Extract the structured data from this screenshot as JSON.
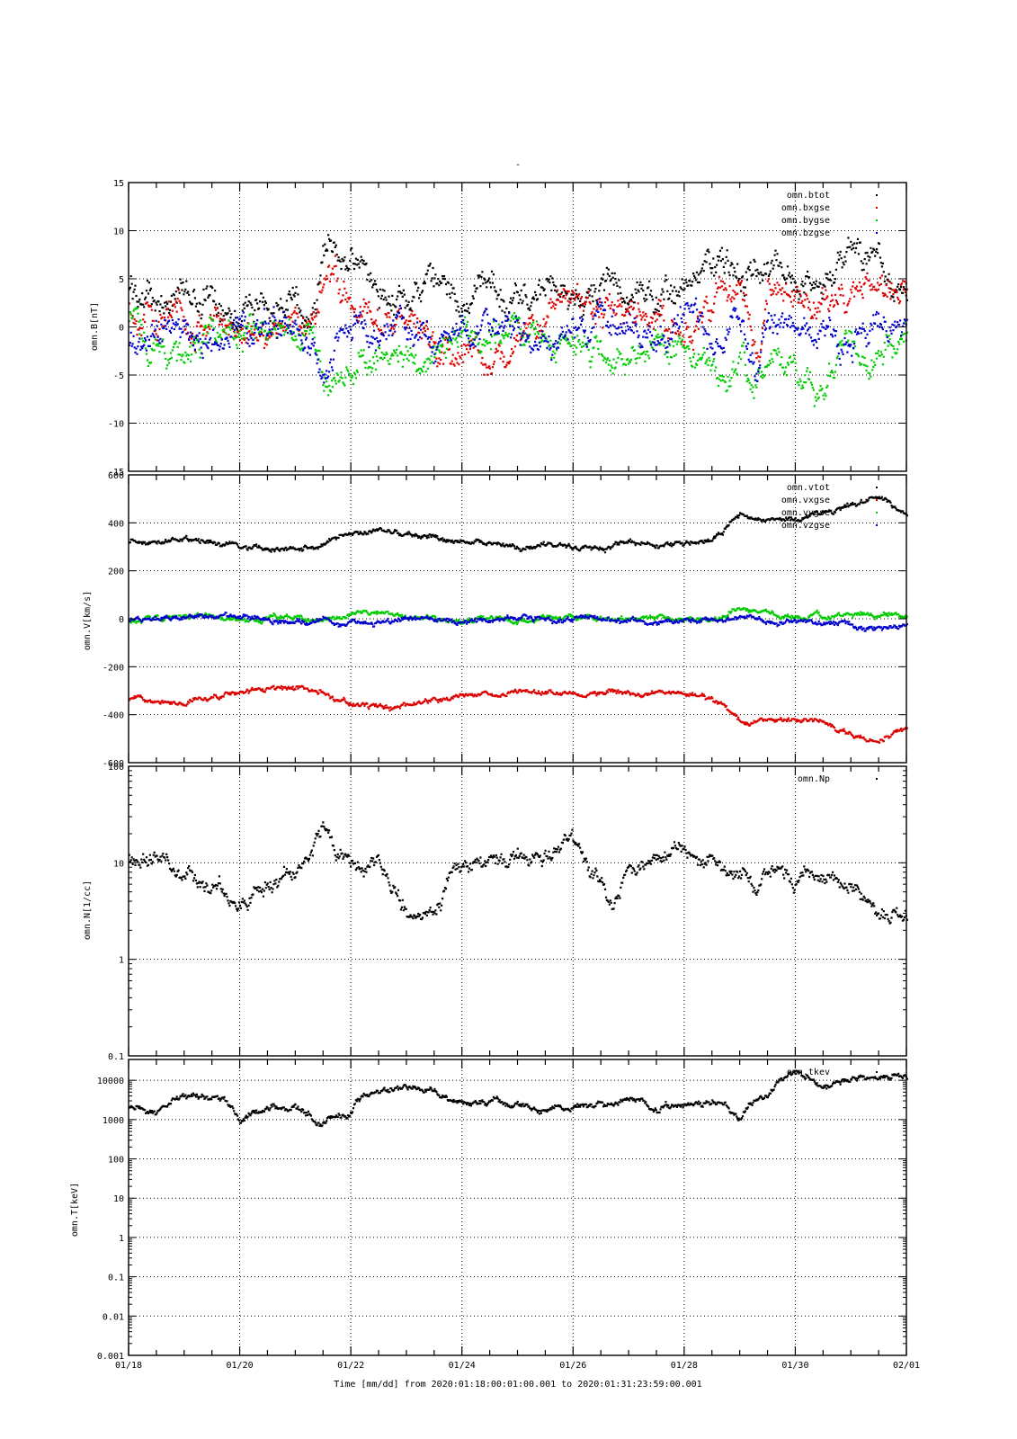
{
  "page": {
    "top_title": "-"
  },
  "x_axis": {
    "tick_labels": [
      "01/18",
      "01/20",
      "01/22",
      "01/24",
      "01/26",
      "01/28",
      "01/30",
      "02/01"
    ],
    "title": "Time [mm/dd]  from 2020:01:18:00:01:00.001  to  2020:01:31:23:59:00.001",
    "range_days": [
      0,
      14
    ]
  },
  "colors": {
    "black": "#000000",
    "red": "#dd0000",
    "green": "#00cc00",
    "blue": "#0000cc"
  },
  "chart_data": [
    {
      "type": "scatter",
      "ylabel": "omn.B[nT]",
      "ylim": [
        -15,
        15
      ],
      "yscale": "linear",
      "y_tick_labels": [
        "15",
        "10",
        "5",
        "0",
        "-5",
        "-10",
        "-15"
      ],
      "grid": true,
      "legend_placement": "top-right",
      "x_units": "days since 01/18",
      "series": [
        {
          "name": "omn.btot",
          "color": "#000000",
          "x": [
            0,
            0.5,
            1,
            1.5,
            2,
            2.5,
            3,
            3.3,
            3.5,
            3.7,
            4,
            4.5,
            5,
            5.5,
            6,
            6.5,
            7,
            7.5,
            8,
            8.5,
            9,
            9.5,
            10,
            10.5,
            11,
            11.3,
            11.5,
            12,
            12.5,
            13,
            13.5,
            14
          ],
          "y": [
            4,
            3,
            3.5,
            3,
            2.5,
            2.5,
            2,
            2,
            8.5,
            8,
            7,
            4,
            3.5,
            3.5,
            3,
            4,
            3,
            4,
            3,
            3.5,
            3.5,
            3,
            3,
            7,
            6.5,
            7,
            6,
            5.5,
            6,
            7,
            5.5,
            4.5
          ]
        },
        {
          "name": "omn.bxgse",
          "color": "#dd0000",
          "x": [
            0,
            0.5,
            1,
            1.5,
            2,
            2.5,
            3,
            3.3,
            3.5,
            3.7,
            4,
            4.5,
            5,
            5.5,
            6,
            6.5,
            7,
            7.5,
            8,
            8.5,
            9,
            9.5,
            10,
            10.5,
            11,
            11.3,
            11.5,
            12,
            12.5,
            13,
            13.5,
            14
          ],
          "y": [
            2,
            1,
            1,
            1,
            0,
            0,
            1,
            0,
            5,
            6,
            4,
            0,
            1,
            -3,
            -2,
            -4,
            -2,
            2,
            3,
            2,
            2,
            1,
            -1,
            3,
            4,
            -4,
            5,
            3,
            2,
            4,
            3,
            4
          ]
        },
        {
          "name": "omn.bygse",
          "color": "#00cc00",
          "x": [
            0,
            0.5,
            1,
            1.5,
            2,
            2.5,
            3,
            3.3,
            3.5,
            3.7,
            4,
            4.5,
            5,
            5.5,
            6,
            6.5,
            7,
            7.5,
            8,
            8.5,
            9,
            9.5,
            10,
            10.5,
            11,
            11.3,
            11.5,
            12,
            12.5,
            13,
            13.5,
            14
          ],
          "y": [
            1,
            -2,
            -3,
            -1,
            -1,
            -2,
            -1,
            0,
            -5,
            -5,
            -4,
            -2,
            -3,
            -3,
            -1,
            0,
            -1,
            0,
            -3,
            -2,
            -3,
            -2,
            -2,
            -5,
            -4,
            -5,
            -3,
            -5,
            -6,
            -2,
            -3,
            0
          ]
        },
        {
          "name": "omn.bzgse",
          "color": "#0000cc",
          "x": [
            0,
            0.5,
            1,
            1.5,
            2,
            2.5,
            3,
            3.3,
            3.5,
            3.7,
            4,
            4.5,
            5,
            5.5,
            6,
            6.5,
            7,
            7.5,
            8,
            8.5,
            9,
            9.5,
            10,
            10.5,
            11,
            11.3,
            11.5,
            12,
            12.5,
            13,
            13.5,
            14
          ],
          "y": [
            -2,
            -1,
            0,
            -1,
            1,
            0,
            0,
            -2,
            -7,
            -3,
            0,
            -1,
            1,
            -1,
            -2,
            0,
            -1,
            -1,
            -1,
            1,
            0,
            -1,
            1,
            -2,
            0,
            -2,
            1,
            -1,
            0,
            -2,
            1,
            0
          ]
        }
      ]
    },
    {
      "type": "scatter",
      "ylabel": "omn.V[km/s]",
      "ylim": [
        -600,
        600
      ],
      "yscale": "linear",
      "y_tick_labels": [
        "600",
        "400",
        "200",
        "0",
        "-200",
        "-400",
        "-600"
      ],
      "grid": true,
      "legend_placement": "top-right",
      "series": [
        {
          "name": "omn.vtot",
          "color": "#000000",
          "x": [
            0,
            0.5,
            1,
            1.5,
            2,
            2.5,
            3,
            3.5,
            4,
            4.5,
            5,
            5.5,
            6,
            6.5,
            7,
            7.5,
            8,
            8.5,
            9,
            9.5,
            10,
            10.5,
            11,
            11.5,
            12,
            12.5,
            13,
            13.5,
            14
          ],
          "y": [
            330,
            325,
            345,
            315,
            305,
            290,
            285,
            315,
            355,
            365,
            360,
            345,
            320,
            315,
            305,
            300,
            295,
            305,
            315,
            310,
            315,
            335,
            430,
            410,
            420,
            430,
            480,
            510,
            450
          ]
        },
        {
          "name": "omn.vxgse",
          "color": "#dd0000",
          "x": [
            0,
            0.5,
            1,
            1.5,
            2,
            2.5,
            3,
            3.5,
            4,
            4.5,
            5,
            5.5,
            6,
            6.5,
            7,
            7.5,
            8,
            8.5,
            9,
            9.5,
            10,
            10.5,
            11,
            11.5,
            12,
            12.5,
            13,
            13.5,
            14
          ],
          "y": [
            -330,
            -325,
            -345,
            -315,
            -305,
            -290,
            -285,
            -315,
            -355,
            -365,
            -360,
            -345,
            -320,
            -315,
            -305,
            -300,
            -295,
            -305,
            -315,
            -310,
            -315,
            -335,
            -430,
            -410,
            -420,
            -430,
            -480,
            -510,
            -450
          ]
        },
        {
          "name": "omn.vygse",
          "color": "#00cc00",
          "x": [
            0,
            0.5,
            1,
            1.5,
            2,
            2.5,
            3,
            3.5,
            4,
            4.5,
            5,
            5.5,
            6,
            6.5,
            7,
            7.5,
            8,
            8.5,
            9,
            9.5,
            10,
            10.5,
            11,
            11.5,
            12,
            12.5,
            13,
            13.5,
            14
          ],
          "y": [
            0,
            5,
            10,
            5,
            0,
            5,
            5,
            0,
            25,
            15,
            5,
            0,
            0,
            5,
            0,
            10,
            5,
            0,
            5,
            5,
            5,
            0,
            40,
            25,
            15,
            20,
            25,
            15,
            20
          ]
        },
        {
          "name": "omn.vzgse",
          "color": "#0000cc",
          "x": [
            0,
            0.5,
            1,
            1.5,
            2,
            2.5,
            3,
            3.5,
            4,
            4.5,
            5,
            5.5,
            6,
            6.5,
            7,
            7.5,
            8,
            8.5,
            9,
            9.5,
            10,
            10.5,
            11,
            11.5,
            12,
            12.5,
            13,
            13.5,
            14
          ],
          "y": [
            0,
            5,
            10,
            5,
            0,
            0,
            -5,
            -10,
            -15,
            -10,
            -5,
            0,
            -5,
            -5,
            0,
            0,
            0,
            0,
            -5,
            -5,
            0,
            0,
            -15,
            -10,
            -15,
            -20,
            -25,
            -40,
            -25
          ]
        }
      ]
    },
    {
      "type": "scatter",
      "ylabel": "omn.N[1/cc]",
      "ylim": [
        0.1,
        100
      ],
      "yscale": "log",
      "y_tick_labels": [
        "100",
        "10",
        "1",
        "0.1"
      ],
      "grid": true,
      "legend_placement": "top-right",
      "series": [
        {
          "name": "omn.Np",
          "color": "#000000",
          "x": [
            0,
            0.3,
            0.5,
            0.8,
            1,
            1.3,
            1.5,
            1.8,
            2,
            2.5,
            3,
            3.3,
            3.5,
            3.7,
            4,
            4.5,
            5,
            5.5,
            6,
            6.5,
            7,
            7.5,
            8,
            8.3,
            8.7,
            9,
            9.5,
            10,
            10.5,
            11,
            11.3,
            11.5,
            12,
            12.3,
            12.5,
            13,
            13.5,
            14
          ],
          "y": [
            12,
            9,
            12,
            8,
            7,
            6,
            6,
            5,
            4,
            6,
            8,
            12,
            25,
            12,
            10,
            10,
            3,
            3,
            9,
            11,
            12,
            12,
            15,
            8,
            4,
            9,
            12,
            15,
            12,
            8,
            5,
            9,
            6,
            7,
            5,
            6,
            3,
            3
          ]
        }
      ]
    },
    {
      "type": "scatter",
      "ylabel": "omn.T[keV]",
      "ylim": [
        0.001,
        20000
      ],
      "yscale": "log",
      "y_tick_labels": [
        "10000",
        "1000",
        "100",
        "10",
        "1",
        "0.1",
        "0.01",
        "0.001"
      ],
      "grid": true,
      "legend_placement": "top-right",
      "series": [
        {
          "name": "omn.tkev",
          "color": "#000000",
          "x": [
            0,
            0.5,
            1,
            1.5,
            2,
            2.5,
            3,
            3.5,
            4,
            4.5,
            5,
            5.5,
            6,
            6.5,
            7,
            7.5,
            8,
            8.5,
            9,
            9.5,
            10,
            10.5,
            11,
            11.5,
            12,
            12.5,
            13,
            13.5,
            14
          ],
          "y": [
            2000,
            1500,
            3500,
            4000,
            1000,
            2500,
            2000,
            800,
            1500,
            7000,
            7000,
            5000,
            3000,
            3000,
            2500,
            2000,
            2000,
            2500,
            3500,
            2000,
            2500,
            3000,
            1200,
            5000,
            15000,
            8000,
            10000,
            15000,
            12000
          ]
        }
      ]
    }
  ]
}
